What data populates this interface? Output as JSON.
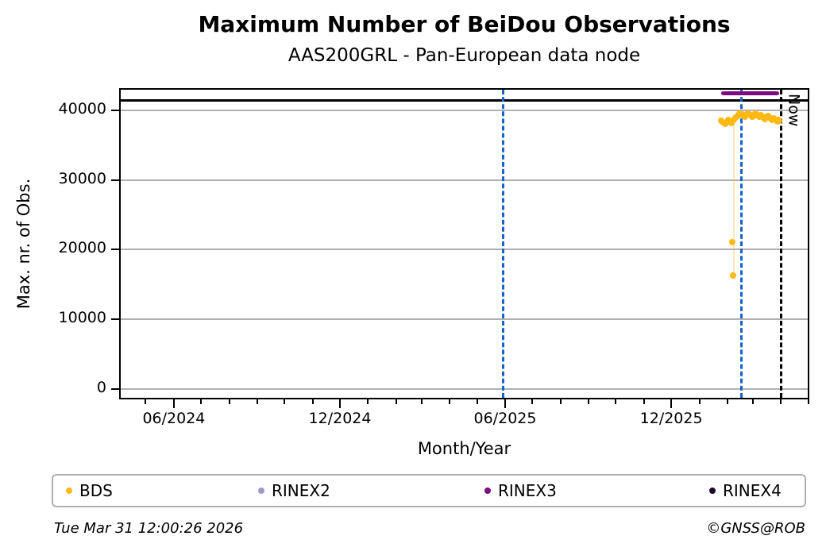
{
  "footer": {
    "timestamp": "Tue Mar 31 12:00:26 2026",
    "credit": "©GNSS@ROB"
  },
  "colors": {
    "bds": "#fdb913",
    "rinex2": "#9e9ac8",
    "rinex3": "#7c0a80",
    "rinex4": "#1e0b28",
    "event_line_blue": "#1565c8",
    "now_line_black": "#000000",
    "grid_gray": "#b0b0b0"
  },
  "chart_data": {
    "type": "scatter",
    "title": "Maximum Number of BeiDou Observations",
    "subtitle": "AAS200GRL - Pan-European data node",
    "xlabel": "Month/Year",
    "ylabel": "Max. nr. of Obs.",
    "grid": "horizontal-major-only",
    "legend_position": "bottom",
    "x_axis": {
      "start": "2024-04-02",
      "end": "2026-05-02",
      "minor_tick_interval_months": 1,
      "major_ticks": [
        {
          "date": "2024-06-01",
          "label": "06/2024"
        },
        {
          "date": "2024-12-01",
          "label": "12/2024"
        },
        {
          "date": "2025-06-01",
          "label": "06/2025"
        },
        {
          "date": "2025-12-01",
          "label": "12/2025"
        }
      ]
    },
    "y_axis": {
      "min": -1540,
      "max": 43210,
      "ticks": [
        0,
        10000,
        20000,
        30000,
        40000
      ]
    },
    "reference_line": {
      "value": 41500,
      "color": "#000000",
      "style": "solid",
      "extent": "full-width"
    },
    "event_lines": [
      {
        "date": "2025-05-30",
        "color": "#1565c8",
        "style": "dashed"
      },
      {
        "date": "2026-02-16",
        "color": "#1565c8",
        "style": "dashed"
      }
    ],
    "now_line": {
      "date": "2026-04-01",
      "label": "Now",
      "color": "#000000",
      "style": "dashed"
    },
    "series": [
      {
        "name": "BDS",
        "color": "#fdb913",
        "marker": "dot",
        "points": [
          {
            "d": "2026-01-25",
            "v": 38500
          },
          {
            "d": "2026-01-27",
            "v": 38250
          },
          {
            "d": "2026-01-29",
            "v": 38050
          },
          {
            "d": "2026-01-31",
            "v": 38350
          },
          {
            "d": "2026-02-02",
            "v": 38700
          },
          {
            "d": "2026-02-04",
            "v": 38400
          },
          {
            "d": "2026-02-05",
            "v": 38200
          },
          {
            "d": "2026-02-06",
            "v": 21100
          },
          {
            "d": "2026-02-07",
            "v": 16300
          },
          {
            "d": "2026-02-08",
            "v": 38600
          },
          {
            "d": "2026-02-10",
            "v": 39000
          },
          {
            "d": "2026-02-12",
            "v": 39250
          },
          {
            "d": "2026-02-14",
            "v": 39500
          },
          {
            "d": "2026-02-16",
            "v": 39550
          },
          {
            "d": "2026-02-18",
            "v": 39300
          },
          {
            "d": "2026-02-20",
            "v": 39150
          },
          {
            "d": "2026-02-22",
            "v": 39450
          },
          {
            "d": "2026-02-24",
            "v": 39550
          },
          {
            "d": "2026-02-26",
            "v": 39350
          },
          {
            "d": "2026-02-28",
            "v": 39050
          },
          {
            "d": "2026-03-02",
            "v": 39250
          },
          {
            "d": "2026-03-04",
            "v": 39500
          },
          {
            "d": "2026-03-06",
            "v": 39300
          },
          {
            "d": "2026-03-08",
            "v": 39100
          },
          {
            "d": "2026-03-10",
            "v": 39350
          },
          {
            "d": "2026-03-12",
            "v": 38950
          },
          {
            "d": "2026-03-14",
            "v": 38750
          },
          {
            "d": "2026-03-16",
            "v": 39050
          },
          {
            "d": "2026-03-18",
            "v": 39250
          },
          {
            "d": "2026-03-20",
            "v": 38850
          },
          {
            "d": "2026-03-22",
            "v": 38600
          },
          {
            "d": "2026-03-24",
            "v": 38900
          },
          {
            "d": "2026-03-26",
            "v": 38700
          },
          {
            "d": "2026-03-28",
            "v": 38450
          },
          {
            "d": "2026-03-29",
            "v": 38600
          },
          {
            "d": "2026-03-30",
            "v": 38500
          }
        ],
        "dip_connector": {
          "date": "2026-02-06",
          "from": 38400,
          "to": 16300
        }
      },
      {
        "name": "RINEX2",
        "color": "#9e9ac8",
        "marker": "dot",
        "points": []
      },
      {
        "name": "RINEX3",
        "color": "#7c0a80",
        "marker": "dot",
        "render": "thick-segment",
        "points": [
          {
            "d": "2026-01-25",
            "v": 42500
          },
          {
            "d": "2026-03-30",
            "v": 42500
          }
        ]
      },
      {
        "name": "RINEX4",
        "color": "#1e0b28",
        "marker": "dot",
        "points": []
      }
    ]
  }
}
